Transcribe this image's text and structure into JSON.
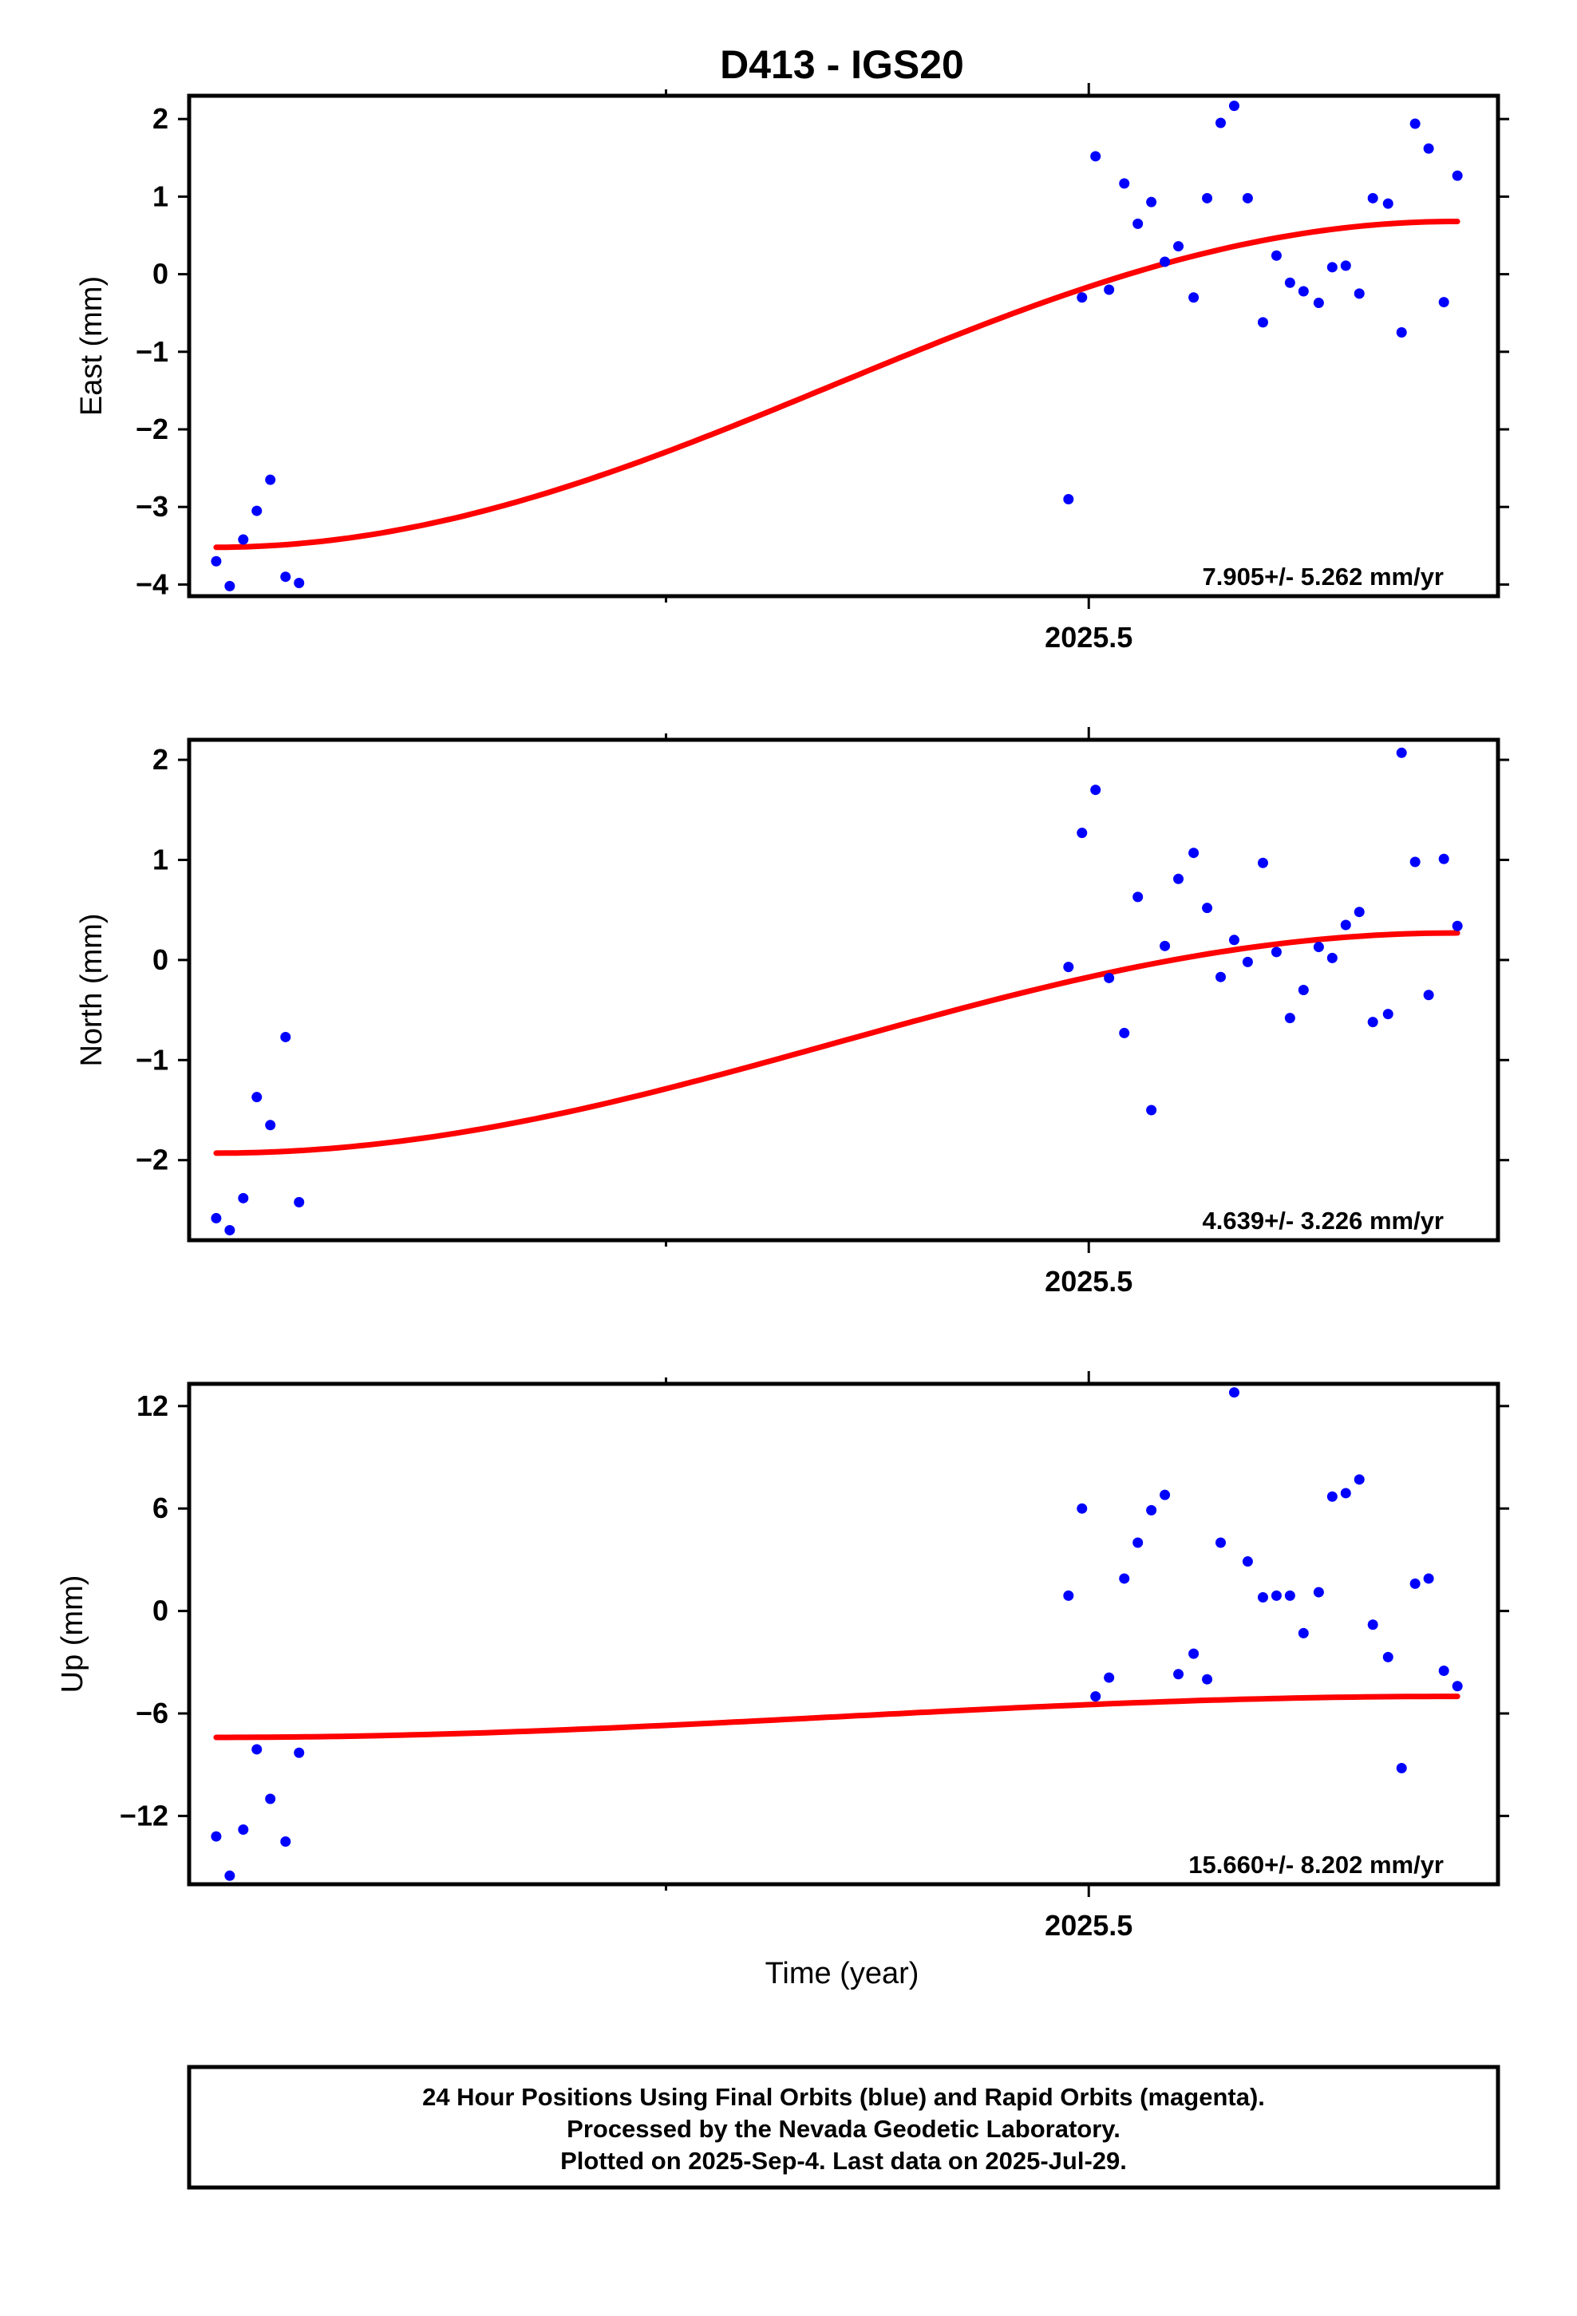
{
  "figure": {
    "title": "D413 - IGS20",
    "xlabel": "Time (year)",
    "footer": [
      "24 Hour Positions Using Final Orbits (blue) and Rapid Orbits (magenta).",
      "Processed by the Nevada Geodetic Laboratory.",
      "Plotted on 2025-Sep-4. Last data on 2025-Jul-29."
    ]
  },
  "colors": {
    "points": "#0000ff",
    "fit": "#ff0000",
    "frame": "#000000"
  },
  "chart_data": [
    {
      "type": "scatter",
      "ylabel": "East (mm)",
      "rate_label": "7.905+/- 5.262 mm/yr",
      "xlim": [
        2024.968,
        2025.742
      ],
      "ylim": [
        -4.15,
        2.3
      ],
      "x_ticks": [
        2025.5
      ],
      "x_minor_ticks": [
        2025.25
      ],
      "x_tick_labels": [
        "2025.5"
      ],
      "y_ticks": [
        -4,
        -3,
        -2,
        -1,
        0,
        1,
        2
      ],
      "y_tick_labels": [
        "−4",
        "−3",
        "−2",
        "−1",
        "0",
        "1",
        "2"
      ],
      "fit_range": [
        2024.984,
        2025.718
      ],
      "fit": {
        "mean_rate": 7.905,
        "center": 2025.35,
        "amplitude": 2.1,
        "phase_at_start": -0.22,
        "offset_at_start": -3.52
      },
      "series": [
        {
          "x": [
            2024.984,
            2024.992,
            2025.0,
            2025.008,
            2025.016,
            2025.025,
            2025.033,
            2025.488,
            2025.496,
            2025.504,
            2025.512,
            2025.521,
            2025.529,
            2025.537,
            2025.545,
            2025.553,
            2025.562,
            2025.57,
            2025.578,
            2025.586,
            2025.594,
            2025.603,
            2025.611,
            2025.619,
            2025.627,
            2025.636,
            2025.644,
            2025.652,
            2025.66,
            2025.668,
            2025.677,
            2025.685,
            2025.693,
            2025.701,
            2025.71,
            2025.718
          ],
          "y": [
            -3.7,
            -4.02,
            -3.42,
            -3.05,
            -2.65,
            -3.9,
            -3.98,
            -2.9,
            -0.3,
            1.52,
            -0.2,
            1.17,
            0.65,
            0.93,
            0.16,
            0.36,
            -0.3,
            0.98,
            1.95,
            2.17,
            0.98,
            -0.62,
            0.24,
            -0.11,
            -0.22,
            -0.37,
            0.09,
            0.11,
            -0.25,
            0.98,
            0.91,
            -0.75,
            1.94,
            1.62,
            -0.36,
            1.27
          ]
        }
      ]
    },
    {
      "type": "scatter",
      "ylabel": "North (mm)",
      "rate_label": "4.639+/- 3.226 mm/yr",
      "xlim": [
        2024.968,
        2025.742
      ],
      "ylim": [
        -2.8,
        2.2
      ],
      "x_ticks": [
        2025.5
      ],
      "x_minor_ticks": [
        2025.25
      ],
      "x_tick_labels": [
        "2025.5"
      ],
      "y_ticks": [
        -2,
        -1,
        0,
        1,
        2
      ],
      "y_tick_labels": [
        "−2",
        "−1",
        "0",
        "1",
        "2"
      ],
      "fit_range": [
        2024.984,
        2025.718
      ],
      "fit": {
        "mean_rate": 4.639,
        "center": 2025.35,
        "amplitude": 1.1,
        "phase_at_start": -0.04,
        "offset_at_start": -1.93
      },
      "series": [
        {
          "x": [
            2024.984,
            2024.992,
            2025.0,
            2025.008,
            2025.016,
            2025.025,
            2025.033,
            2025.488,
            2025.496,
            2025.504,
            2025.512,
            2025.521,
            2025.529,
            2025.537,
            2025.545,
            2025.553,
            2025.562,
            2025.57,
            2025.578,
            2025.586,
            2025.594,
            2025.603,
            2025.611,
            2025.619,
            2025.627,
            2025.636,
            2025.644,
            2025.652,
            2025.66,
            2025.668,
            2025.677,
            2025.685,
            2025.693,
            2025.701,
            2025.71,
            2025.718
          ],
          "y": [
            -2.58,
            -2.7,
            -2.38,
            -1.37,
            -1.65,
            -0.77,
            -2.42,
            -0.07,
            1.27,
            1.7,
            -0.18,
            -0.73,
            0.63,
            -1.5,
            0.14,
            0.81,
            1.07,
            0.52,
            -0.17,
            0.2,
            -0.02,
            0.97,
            0.08,
            -0.58,
            -0.3,
            0.13,
            0.02,
            0.35,
            0.48,
            -0.62,
            -0.54,
            2.07,
            0.98,
            -0.35,
            1.01,
            0.34
          ]
        }
      ]
    },
    {
      "type": "scatter",
      "ylabel": "Up (mm)",
      "rate_label": "15.660+/- 8.202 mm/yr",
      "xlim": [
        2024.968,
        2025.742
      ],
      "ylim": [
        -16,
        13.3
      ],
      "x_ticks": [
        2025.5
      ],
      "x_minor_ticks": [
        2025.25
      ],
      "x_tick_labels": [
        "2025.5"
      ],
      "y_ticks": [
        -12,
        -6,
        0,
        6,
        12
      ],
      "y_tick_labels": [
        "−12",
        "−6",
        "0",
        "6",
        "12"
      ],
      "fit_range": [
        2024.984,
        2025.718
      ],
      "fit": {
        "mean_rate": 15.66,
        "center": 2025.35,
        "amplitude": 1.2,
        "phase_at_start": 0.0,
        "offset_at_start": -7.4
      },
      "series": [
        {
          "x": [
            2024.984,
            2024.992,
            2025.0,
            2025.008,
            2025.016,
            2025.025,
            2025.033,
            2025.488,
            2025.496,
            2025.504,
            2025.512,
            2025.521,
            2025.529,
            2025.537,
            2025.545,
            2025.553,
            2025.562,
            2025.57,
            2025.578,
            2025.586,
            2025.594,
            2025.603,
            2025.611,
            2025.619,
            2025.627,
            2025.636,
            2025.644,
            2025.652,
            2025.66,
            2025.668,
            2025.677,
            2025.685,
            2025.693,
            2025.701,
            2025.71,
            2025.718
          ],
          "y": [
            -13.2,
            -15.5,
            -12.8,
            -8.1,
            -11,
            -13.5,
            -8.3,
            0.9,
            6,
            -5,
            -3.9,
            1.9,
            4,
            5.9,
            6.8,
            -3.7,
            -2.5,
            -4,
            4,
            12.8,
            2.9,
            0.8,
            0.9,
            0.9,
            -1.3,
            1.1,
            6.7,
            6.9,
            7.7,
            -0.8,
            -2.7,
            -9.2,
            1.6,
            1.9,
            -3.5,
            -4.4
          ]
        }
      ]
    }
  ]
}
